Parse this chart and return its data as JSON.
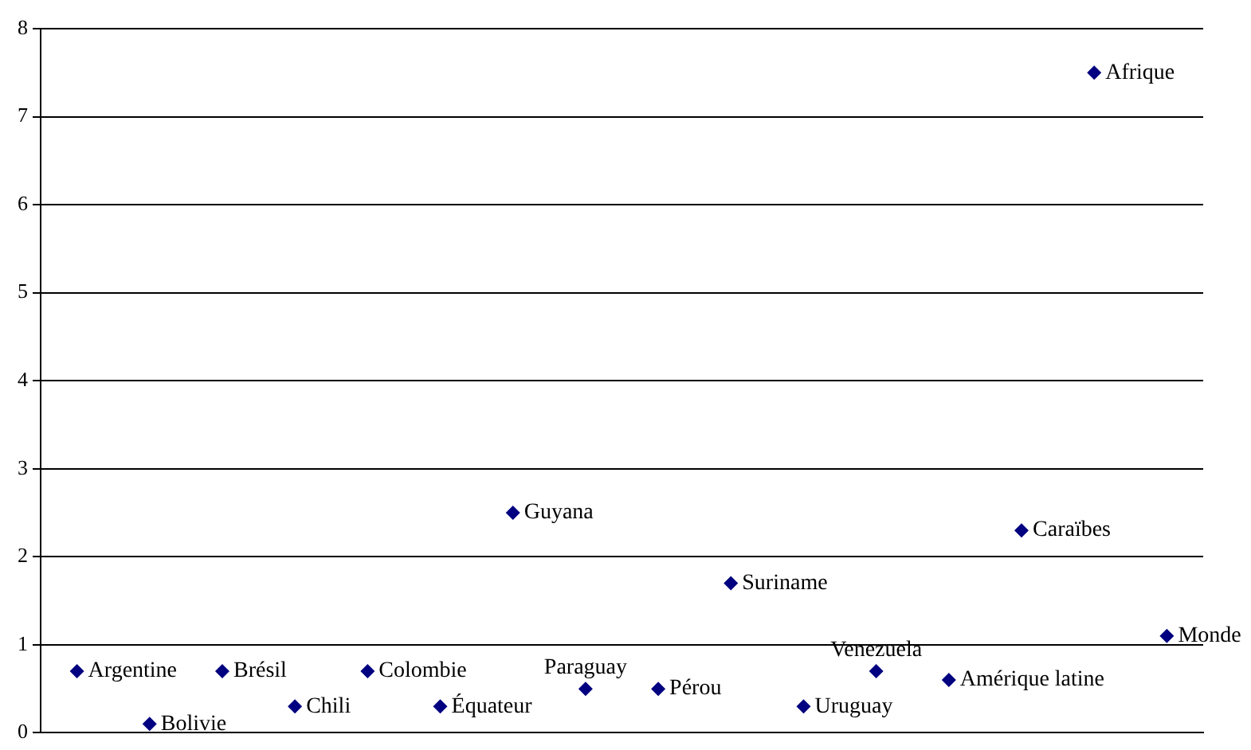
{
  "chart_data": {
    "type": "scatter",
    "categories": [
      null,
      null,
      null,
      null,
      null,
      null,
      null,
      null,
      null,
      null,
      null,
      null,
      null,
      null,
      null,
      null
    ],
    "series": [
      {
        "name": "Argentine",
        "color": "#000080",
        "values": [
          0.7,
          null,
          null,
          null,
          null,
          null,
          null,
          null,
          null,
          null,
          null,
          null,
          null,
          null,
          null,
          null
        ]
      },
      {
        "name": "Bolivie",
        "color": "#000080",
        "values": [
          null,
          0.1,
          null,
          null,
          null,
          null,
          null,
          null,
          null,
          null,
          null,
          null,
          null,
          null,
          null,
          null
        ]
      },
      {
        "name": "Brésil",
        "color": "#000080",
        "values": [
          null,
          null,
          0.7,
          null,
          null,
          null,
          null,
          null,
          null,
          null,
          null,
          null,
          null,
          null,
          null,
          null
        ]
      },
      {
        "name": "Chili",
        "color": "#000080",
        "values": [
          null,
          null,
          null,
          0.3,
          null,
          null,
          null,
          null,
          null,
          null,
          null,
          null,
          null,
          null,
          null,
          null
        ]
      },
      {
        "name": "Colombie",
        "color": "#000080",
        "values": [
          null,
          null,
          null,
          null,
          0.7,
          null,
          null,
          null,
          null,
          null,
          null,
          null,
          null,
          null,
          null,
          null
        ]
      },
      {
        "name": "Équateur",
        "color": "#000080",
        "values": [
          null,
          null,
          null,
          null,
          null,
          0.3,
          null,
          null,
          null,
          null,
          null,
          null,
          null,
          null,
          null,
          null
        ]
      },
      {
        "name": "Guyana",
        "color": "#000080",
        "values": [
          null,
          null,
          null,
          null,
          null,
          null,
          2.5,
          null,
          null,
          null,
          null,
          null,
          null,
          null,
          null,
          null
        ]
      },
      {
        "name": "Paraguay",
        "color": "#000080",
        "values": [
          null,
          null,
          null,
          null,
          null,
          null,
          null,
          0.5,
          null,
          null,
          null,
          null,
          null,
          null,
          null,
          null
        ]
      },
      {
        "name": "Pérou",
        "color": "#000080",
        "values": [
          null,
          null,
          null,
          null,
          null,
          null,
          null,
          null,
          0.5,
          null,
          null,
          null,
          null,
          null,
          null,
          null
        ]
      },
      {
        "name": "Suriname",
        "color": "#000080",
        "values": [
          null,
          null,
          null,
          null,
          null,
          null,
          null,
          null,
          null,
          1.7,
          null,
          null,
          null,
          null,
          null,
          null
        ]
      },
      {
        "name": "Uruguay",
        "color": "#000080",
        "values": [
          null,
          null,
          null,
          null,
          null,
          null,
          null,
          null,
          null,
          null,
          0.3,
          null,
          null,
          null,
          null,
          null
        ]
      },
      {
        "name": "Venezuela",
        "color": "#000080",
        "values": [
          null,
          null,
          null,
          null,
          null,
          null,
          null,
          null,
          null,
          null,
          null,
          0.7,
          null,
          null,
          null,
          null
        ]
      },
      {
        "name": "Amérique latine",
        "color": "#000080",
        "values": [
          null,
          null,
          null,
          null,
          null,
          null,
          null,
          null,
          null,
          null,
          null,
          null,
          0.6,
          null,
          null,
          null
        ]
      },
      {
        "name": "Caraïbes",
        "color": "#000080",
        "values": [
          null,
          null,
          null,
          null,
          null,
          null,
          null,
          null,
          null,
          null,
          null,
          null,
          null,
          2.3,
          null,
          null
        ]
      },
      {
        "name": "Afrique",
        "color": "#000080",
        "values": [
          null,
          null,
          null,
          null,
          null,
          null,
          null,
          null,
          null,
          null,
          null,
          null,
          null,
          null,
          7.5,
          null
        ]
      },
      {
        "name": "Monde",
        "color": "#000080",
        "values": [
          null,
          null,
          null,
          null,
          null,
          null,
          null,
          null,
          null,
          null,
          null,
          null,
          null,
          null,
          null,
          1.1
        ]
      }
    ],
    "ylim": [
      0,
      8
    ],
    "yticks": [
      0,
      1,
      2,
      3,
      4,
      5,
      6,
      7,
      8
    ],
    "grid": "y",
    "legend": false,
    "tick_labels": "y",
    "marker": "diamond"
  }
}
